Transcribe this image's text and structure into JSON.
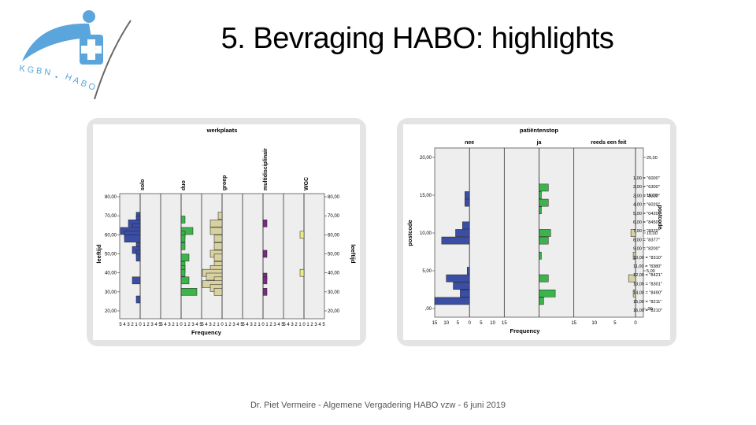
{
  "slide": {
    "title": "5. Bevraging HABO: highlights",
    "footer": "Dr. Piet Vermeire - Algemene Vergadering HABO vzw - 6 juni 2019"
  },
  "logo": {
    "text_left": "KGBN",
    "text_right": "HABO",
    "separator": "•"
  },
  "colors": {
    "blue": "#3a4ea6",
    "green": "#3cb44b",
    "tan": "#d8d2a0",
    "purple": "#7a2c82",
    "yellow": "#ecec86",
    "logo_blue": "#5aa5dc"
  },
  "chart_data": [
    {
      "type": "bar",
      "orientation": "horizontal-histogram-panels",
      "title": "werkplaats",
      "xlabel": "Frequency",
      "ylabel": "leeftijd",
      "ylabel_right": "leeftijd",
      "ylim": [
        20,
        80
      ],
      "yticks": [
        "20,00",
        "30,00",
        "40,00",
        "50,00",
        "60,00",
        "70,00",
        "80,00"
      ],
      "xticks": [
        "5",
        "4",
        "3",
        "2",
        "1",
        "0",
        "1",
        "2",
        "3",
        "4",
        "5"
      ],
      "panels": [
        {
          "name": "solo",
          "color": "#3a4ea6",
          "bars": [
            [
              70,
              1
            ],
            [
              68,
              1
            ],
            [
              66,
              3
            ],
            [
              64,
              2
            ],
            [
              62,
              5
            ],
            [
              60,
              4
            ],
            [
              58,
              4
            ],
            [
              54,
              1
            ],
            [
              52,
              2
            ],
            [
              50,
              1
            ],
            [
              48,
              1
            ],
            [
              36,
              2
            ],
            [
              26,
              1
            ]
          ]
        },
        {
          "name": "duo",
          "color": "#3cb44b",
          "bars": [
            [
              68,
              1
            ],
            [
              62,
              3
            ],
            [
              60,
              1
            ],
            [
              58,
              1
            ],
            [
              54,
              1
            ],
            [
              48,
              2
            ],
            [
              44,
              1
            ],
            [
              42,
              1
            ],
            [
              40,
              1
            ],
            [
              36,
              2
            ],
            [
              30,
              4
            ]
          ]
        },
        {
          "name": "groep",
          "color": "#d8d2a0",
          "bars": [
            [
              70,
              1
            ],
            [
              66,
              3
            ],
            [
              62,
              3
            ],
            [
              58,
              2
            ],
            [
              54,
              2
            ],
            [
              50,
              3
            ],
            [
              48,
              2
            ],
            [
              44,
              2
            ],
            [
              42,
              3
            ],
            [
              40,
              5
            ],
            [
              38,
              4
            ],
            [
              36,
              2
            ],
            [
              34,
              5
            ],
            [
              32,
              3
            ],
            [
              30,
              2
            ]
          ]
        },
        {
          "name": "multidisciplinair",
          "color": "#7a2c82",
          "bars": [
            [
              66,
              1
            ],
            [
              50,
              1
            ],
            [
              38,
              1
            ],
            [
              36,
              1
            ],
            [
              30,
              1
            ]
          ]
        },
        {
          "name": "WGC",
          "color": "#ecec86",
          "bars": [
            [
              60,
              1
            ],
            [
              40,
              1
            ]
          ]
        }
      ]
    },
    {
      "type": "bar",
      "orientation": "horizontal-histogram-panels",
      "title": "patiëntenstop",
      "xlabel": "Frequency",
      "ylabel": "postcode",
      "ylabel_right": "postcode",
      "ylim": [
        0,
        20
      ],
      "yticks": [
        ",00",
        "5,00",
        "10,00",
        "15,00",
        "20,00"
      ],
      "xticks": [
        "15",
        "10",
        "5",
        "0",
        "5",
        "10",
        "15",
        "15",
        "10",
        "5",
        "0"
      ],
      "panels": [
        {
          "name": "nee",
          "color": "#3a4ea6",
          "bars": [
            [
              15,
              2
            ],
            [
              14,
              2
            ],
            [
              11,
              3
            ],
            [
              10,
              6
            ],
            [
              9,
              12
            ],
            [
              5,
              1
            ],
            [
              4,
              10
            ],
            [
              3,
              7
            ],
            [
              2,
              4
            ],
            [
              1,
              15
            ]
          ]
        },
        {
          "name": "ja",
          "color": "#3cb44b",
          "bars": [
            [
              16,
              4
            ],
            [
              15,
              1
            ],
            [
              14,
              4
            ],
            [
              13,
              1
            ],
            [
              10,
              5
            ],
            [
              9,
              4
            ],
            [
              7,
              1
            ],
            [
              4,
              4
            ],
            [
              2,
              7
            ],
            [
              1,
              2
            ]
          ]
        },
        {
          "name": "reeds een feit",
          "color": "#d8d2a0",
          "bars": [
            [
              10,
              2
            ],
            [
              7,
              1
            ],
            [
              4,
              3
            ],
            [
              2,
              1
            ]
          ]
        }
      ],
      "legend": [
        "1,00 = \"6000\"",
        "2,00 = \"6300\"",
        "3,00 = \"8310\"",
        "4,00 = \"6020\"",
        "5,00 = \"0420\"",
        "6,00 = \"8450\"",
        "7,00 = \"8370\"",
        "8,00 = \"8377\"",
        "9,00 = \"8200\"",
        "10,00 = \"8310\"",
        "11,00 = \"8380\"",
        "12,00 = \"8421\"",
        "13,00 = \"8301\"",
        "14,00 = \"8490\"",
        "15,00 = \"8211\"",
        "16,00 = \"8210\""
      ]
    }
  ]
}
